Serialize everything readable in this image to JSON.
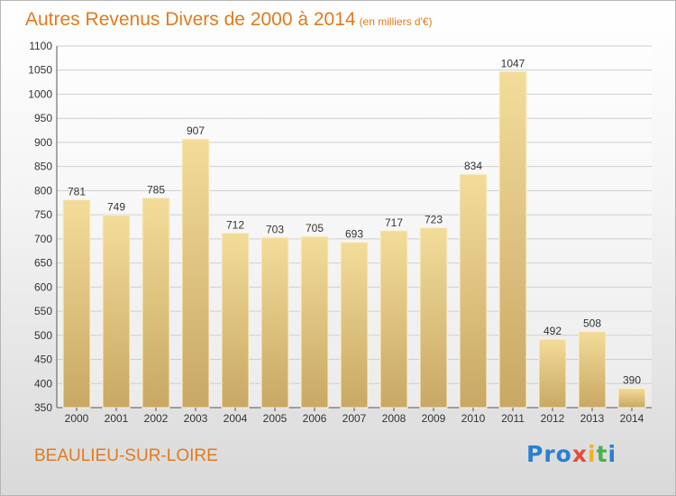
{
  "header": {
    "title": "Autres Revenus Divers de 2000 à 2014",
    "subtitle": "(en milliers d'€)"
  },
  "footer": {
    "place": "BEAULIEU-SUR-LOIRE",
    "logo": {
      "letters": [
        "P",
        "r",
        "o",
        "x",
        "i",
        "t",
        "i"
      ],
      "colors": [
        "#2a7fd1",
        "#2a7fd1",
        "#2a7fd1",
        "#e64a3b",
        "#f2b21c",
        "#4caf50",
        "#2a7fd1"
      ]
    }
  },
  "colors": {
    "bar_top": "#f3dc9a",
    "bar_bottom": "#c8a864",
    "title": "#e07b1c",
    "grid": "#cfcfcf"
  },
  "chart_data": {
    "type": "bar",
    "categories": [
      "2000",
      "2001",
      "2002",
      "2003",
      "2004",
      "2005",
      "2006",
      "2007",
      "2008",
      "2009",
      "2010",
      "2011",
      "2012",
      "2013",
      "2014"
    ],
    "values": [
      781,
      749,
      785,
      907,
      712,
      703,
      705,
      693,
      717,
      723,
      834,
      1047,
      492,
      508,
      390
    ],
    "ylim": [
      350,
      1100
    ],
    "yticks": [
      350,
      400,
      450,
      500,
      550,
      600,
      650,
      700,
      750,
      800,
      850,
      900,
      950,
      1000,
      1050,
      1100
    ],
    "grid": true,
    "xlabel": "",
    "ylabel": ""
  }
}
